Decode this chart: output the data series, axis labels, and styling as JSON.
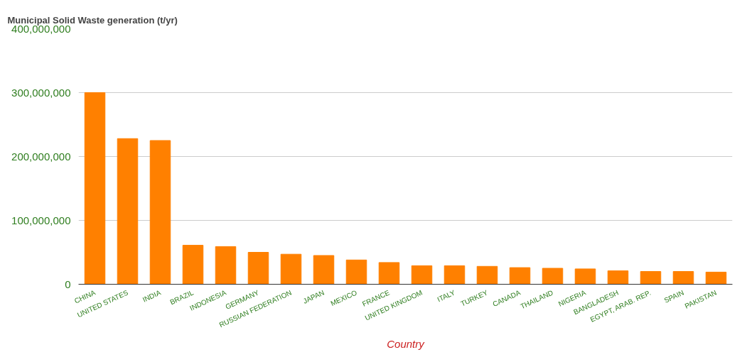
{
  "chart_data": {
    "type": "bar",
    "title": "Municipal Solid Waste generation (t/yr)",
    "xlabel": "Country",
    "categories": [
      "CHINA",
      "UNITED STATES",
      "INDIA",
      "BRAZIL",
      "INDONESIA",
      "GERMANY",
      "RUSSIAN FEDERATION",
      "JAPAN",
      "MEXICO",
      "FRANCE",
      "UNITED KINGDOM",
      "ITALY",
      "TURKEY",
      "CANADA",
      "THAILAND",
      "NIGERIA",
      "BANGLADESH",
      "EGYPT, ARAB. REP.",
      "SPAIN",
      "PAKISTAN"
    ],
    "values": [
      300000000,
      228000000,
      225000000,
      61000000,
      59000000,
      50000000,
      47000000,
      45000000,
      38000000,
      34000000,
      29000000,
      29000000,
      28000000,
      26000000,
      25000000,
      24000000,
      21000000,
      20000000,
      20000000,
      19000000
    ],
    "color": "#ff8000",
    "ylim": [
      0,
      400000000
    ],
    "yticks": [
      {
        "value": 0,
        "label": "0"
      },
      {
        "value": 100000000,
        "label": "100,000,000"
      },
      {
        "value": 200000000,
        "label": "200,000,000"
      },
      {
        "value": 300000000,
        "label": "300,000,000"
      },
      {
        "value": 400000000,
        "label": "400,000,000"
      }
    ],
    "grid": "y"
  }
}
